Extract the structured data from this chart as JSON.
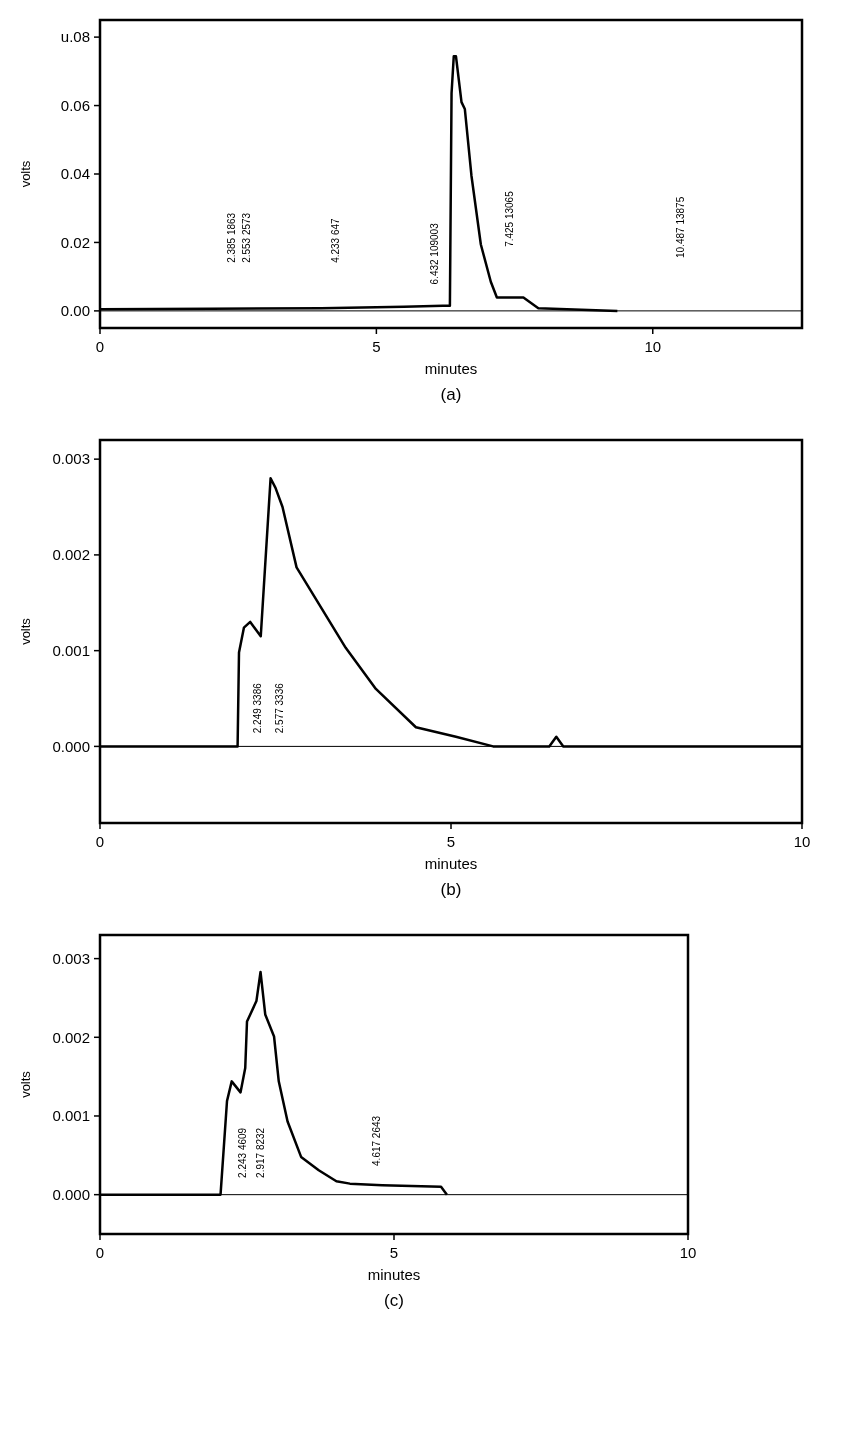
{
  "chart_data": [
    {
      "type": "line",
      "title": "(a)",
      "xlabel": "minutes",
      "ylabel": "volts",
      "xlim": [
        0,
        12.7
      ],
      "ylim": [
        -0.005,
        0.085
      ],
      "xticks": [
        0,
        5,
        10
      ],
      "yticks": [
        {
          "value": 0,
          "label": "0.00"
        },
        {
          "value": 0.02,
          "label": "0.02"
        },
        {
          "value": 0.04,
          "label": "0.04"
        },
        {
          "value": 0.06,
          "label": "0.06"
        },
        {
          "value": 0.08,
          "label": "u.08"
        }
      ],
      "x": [
        0,
        2,
        4,
        5.5,
        6.2,
        6.33,
        6.36,
        6.4,
        6.44,
        6.54,
        6.6,
        6.72,
        6.89,
        7.07,
        7.18,
        7.66,
        7.93,
        9.36
      ],
      "series": [
        {
          "color": "#000000",
          "values": [
            0.0005,
            0.0006,
            0.0008,
            0.0012,
            0.0015,
            0.0015,
            0.0636,
            0.0744,
            0.0744,
            0.061,
            0.059,
            0.0395,
            0.0194,
            0.0085,
            0.0039,
            0.0039,
            0.0008,
            0.0
          ]
        }
      ],
      "ref_lines": [
        {
          "axis": "y",
          "value": 0,
          "color": "#000000"
        }
      ],
      "annotations": [
        "2.553 2573",
        "2.385 1863",
        "4.233 647",
        "6.432 109003",
        "7.425 13065",
        "10.487 13875"
      ]
    },
    {
      "type": "line",
      "title": "(b)",
      "xlabel": "minutes",
      "ylabel": "volts",
      "xlim": [
        0,
        10
      ],
      "ylim": [
        -0.0008,
        0.0032
      ],
      "xticks": [
        0,
        5,
        10
      ],
      "yticks": [
        {
          "value": 0,
          "label": "0.000"
        },
        {
          "value": 0.001,
          "label": "0.001"
        },
        {
          "value": 0.002,
          "label": "0.002"
        },
        {
          "value": 0.003,
          "label": "0.003"
        }
      ],
      "x": [
        0,
        1.96,
        1.98,
        2.05,
        2.14,
        2.29,
        2.43,
        2.5,
        2.6,
        2.8,
        3.5,
        3.93,
        4.5,
        5.07,
        5.6,
        6.4,
        6.5,
        6.6,
        10
      ],
      "series": [
        {
          "color": "#000000",
          "values": [
            0.0,
            0.0,
            0.00098,
            0.00124,
            0.0013,
            0.00115,
            0.0028,
            0.0027,
            0.0025,
            0.00187,
            0.00103,
            0.0006,
            0.0002,
            0.0001,
            0.0,
            0.0,
            0.0001,
            0.0,
            0.0
          ]
        }
      ],
      "ref_lines": [
        {
          "axis": "y",
          "value": 0,
          "color": "#000000"
        }
      ],
      "annotations": [
        "2.249 3386",
        "2.577 3336"
      ]
    },
    {
      "type": "line",
      "title": "(c)",
      "xlabel": "minutes",
      "ylabel": "volts",
      "xlim": [
        0,
        10
      ],
      "ylim": [
        -0.0005,
        0.0033
      ],
      "xticks": [
        0,
        5,
        10
      ],
      "yticks": [
        {
          "value": 0,
          "label": "0.000"
        },
        {
          "value": 0.001,
          "label": "0.001"
        },
        {
          "value": 0.002,
          "label": "0.002"
        },
        {
          "value": 0.003,
          "label": "0.003"
        }
      ],
      "x": [
        0,
        1.67,
        1.9,
        2.05,
        2.16,
        2.24,
        2.39,
        2.47,
        2.5,
        2.66,
        2.73,
        2.81,
        2.96,
        3.04,
        3.19,
        3.42,
        3.72,
        4.02,
        4.25,
        4.8,
        5.8,
        5.9
      ],
      "series": [
        {
          "color": "#000000",
          "values": [
            0.0,
            0.0,
            0.0,
            0.0,
            0.00119,
            0.00144,
            0.0013,
            0.00161,
            0.0022,
            0.00246,
            0.00283,
            0.00229,
            0.00201,
            0.00144,
            0.00093,
            0.00048,
            0.00031,
            0.00017,
            0.00014,
            0.00012,
            0.0001,
            0.0
          ]
        }
      ],
      "ref_lines": [
        {
          "axis": "y",
          "value": 0,
          "color": "#000000"
        }
      ],
      "annotations": [
        "2.243 4609",
        "2.917 8232",
        "4.617 2643"
      ]
    }
  ]
}
